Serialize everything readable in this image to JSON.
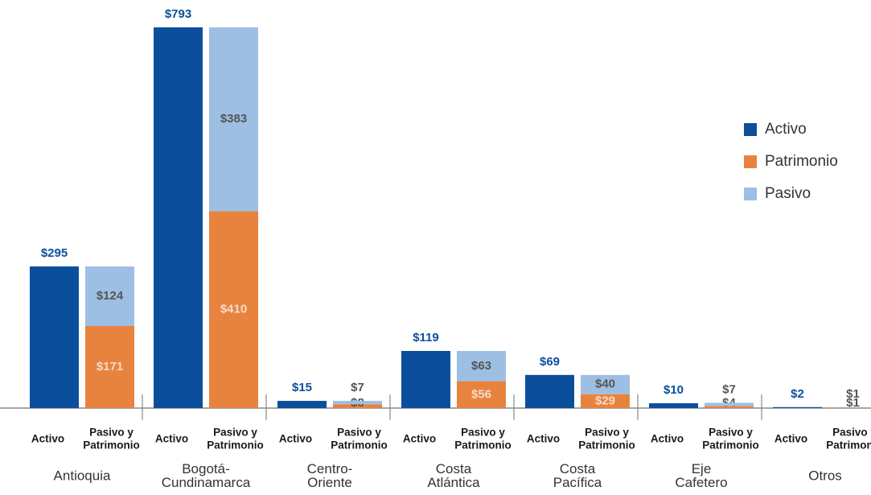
{
  "chart_data": {
    "type": "grouped-stacked-bar",
    "categories": [
      [
        "Antioquia"
      ],
      [
        "Bogotá-",
        "Cundinamarca"
      ],
      [
        "Centro-",
        "Oriente"
      ],
      [
        "Costa",
        "Atlántica"
      ],
      [
        "Costa",
        "Pacífica"
      ],
      [
        "Eje",
        "Cafetero"
      ],
      [
        "Otros"
      ]
    ],
    "bar_labels": [
      [
        "Activo"
      ],
      [
        "Pasivo y",
        "Patrimonio"
      ]
    ],
    "series": [
      {
        "name": "Activo",
        "color": "#0b4f9c",
        "values": [
          295,
          793,
          15,
          119,
          69,
          10,
          2
        ],
        "value_labels": [
          "$295",
          "$793",
          "$15",
          "$119",
          "$69",
          "$10",
          "$2"
        ]
      },
      {
        "name": "Patrimonio",
        "color": "#e8833f",
        "values": [
          171,
          410,
          8,
          56,
          29,
          4,
          1
        ],
        "value_labels": [
          "$171",
          "$410",
          "$8",
          "$56",
          "$29",
          "$4",
          "$1"
        ]
      },
      {
        "name": "Pasivo",
        "color": "#9ebfe4",
        "values": [
          124,
          383,
          7,
          63,
          40,
          7,
          1
        ],
        "value_labels": [
          "$124",
          "$383",
          "$7",
          "$63",
          "$40",
          "$7",
          "$1"
        ]
      }
    ],
    "legend": "right"
  }
}
